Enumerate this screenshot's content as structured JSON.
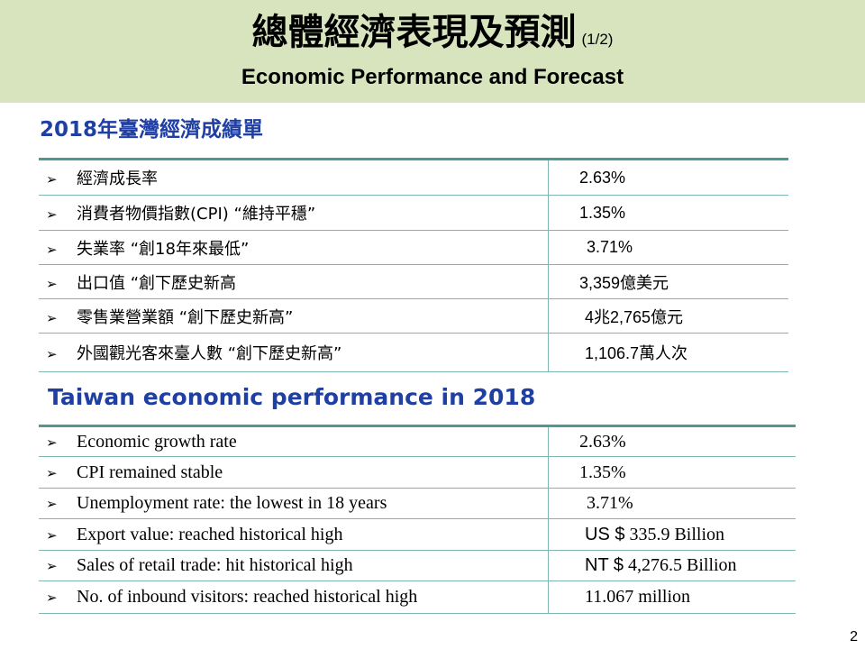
{
  "header": {
    "title_zh": "總體經濟表現及預測",
    "page_indicator": "(1/2)",
    "title_en": "Economic Performance and Forecast"
  },
  "section_zh": {
    "title": "2018年臺灣經濟成績單",
    "bullet_icon": "arrow-bullet-icon",
    "rows": [
      {
        "label": "經濟成長率",
        "value": "2.63%"
      },
      {
        "label": "消費者物價指數(CPI) “維持平穩”",
        "value": "1.35%"
      },
      {
        "label": "失業率 “創18年來最低”",
        "value": "3.71%"
      },
      {
        "label": "出口值 “創下歷史新高",
        "value": "3,359億美元"
      },
      {
        "label": "零售業營業額 “創下歷史新高”",
        "value": "4兆2,765億元"
      },
      {
        "label": "外國觀光客來臺人數 “創下歷史新高”",
        "value": "1,106.7萬人次"
      }
    ]
  },
  "section_en": {
    "title": "Taiwan economic performance in 2018",
    "rows": [
      {
        "label": "Economic growth rate",
        "value": "2.63%"
      },
      {
        "label": "CPI remained stable",
        "value": "1.35%"
      },
      {
        "label": "Unemployment rate:  the lowest in 18 years",
        "value": "3.71%"
      },
      {
        "label": "Export value: reached historical high",
        "prefix": "US $",
        "value": "335.9 Billion"
      },
      {
        "label": "Sales of retail trade: hit historical high",
        "prefix": "NT $",
        "value": "4,276.5 Billion"
      },
      {
        "label": "No. of inbound visitors: reached historical high",
        "value": "11.067 million"
      }
    ]
  },
  "footer": {
    "page_number": "2"
  },
  "colors": {
    "header_bg": "#d7e4bd",
    "section_title": "#1f3fa3",
    "table_rule": "#4c9a91"
  }
}
